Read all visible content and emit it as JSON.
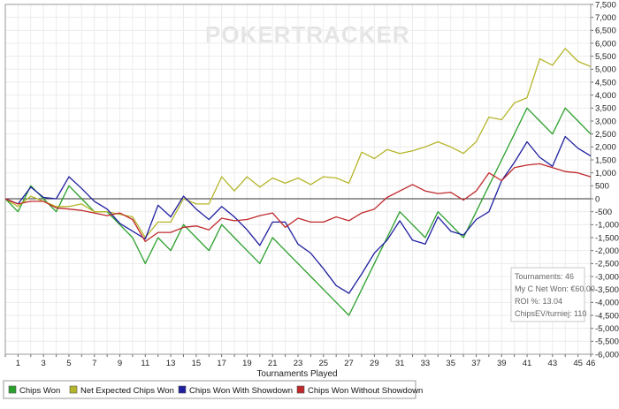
{
  "watermark": "POKERTRACKER",
  "chart_data": {
    "type": "line",
    "xlabel": "Tournaments Played",
    "ylabel": "",
    "ylim": [
      -6000,
      7500
    ],
    "xlim": [
      0,
      46
    ],
    "y_ticks": [
      7500,
      7000,
      6500,
      6000,
      5500,
      5000,
      4500,
      4000,
      3500,
      3000,
      2500,
      2000,
      1500,
      1000,
      500,
      0,
      -500,
      -1000,
      -1500,
      -2000,
      -2500,
      -3000,
      -3500,
      -4000,
      -4500,
      -5000,
      -5500,
      -6000
    ],
    "y_tick_labels": [
      "7,500",
      "7,000",
      "6,500",
      "6,000",
      "5,500",
      "5,000",
      "4,500",
      "4,000",
      "3,500",
      "3,000",
      "2,500",
      "2,000",
      "1,500",
      "1,000",
      "500",
      "0",
      "-500",
      "-1,000",
      "-1,500",
      "-2,000",
      "-2,500",
      "-3,000",
      "-3,500",
      "-4,000",
      "-4,500",
      "-5,000",
      "-5,500",
      "-6,000"
    ],
    "x_ticks": [
      1,
      3,
      5,
      7,
      9,
      11,
      13,
      15,
      17,
      19,
      21,
      23,
      25,
      27,
      29,
      31,
      33,
      35,
      37,
      39,
      41,
      43,
      45,
      46
    ],
    "x_tick_labels": [
      "1",
      "3",
      "5",
      "7",
      "9",
      "11",
      "13",
      "15",
      "17",
      "19",
      "21",
      "23",
      "25",
      "27",
      "29",
      "31",
      "33",
      "35",
      "37",
      "39",
      "41",
      "43",
      "45",
      "46"
    ],
    "grid": true,
    "legend_position": "bottom-left",
    "x": [
      0,
      1,
      2,
      3,
      4,
      5,
      6,
      7,
      8,
      9,
      10,
      11,
      12,
      13,
      14,
      15,
      16,
      17,
      18,
      19,
      20,
      21,
      22,
      23,
      24,
      25,
      26,
      27,
      28,
      29,
      30,
      31,
      32,
      33,
      34,
      35,
      36,
      37,
      38,
      39,
      40,
      41,
      42,
      43,
      44,
      45,
      46
    ],
    "series": [
      {
        "name": "Chips Won",
        "color": "#2ca02c",
        "values": [
          0,
          -500,
          500,
          0,
          -500,
          500,
          0,
          -500,
          -500,
          -1000,
          -1500,
          -2500,
          -1500,
          -2000,
          -1000,
          -1500,
          -2000,
          -1000,
          -1500,
          -2000,
          -2500,
          -1500,
          -2000,
          -2500,
          -3000,
          -3500,
          -4000,
          -4500,
          -3500,
          -2500,
          -1500,
          -500,
          -1000,
          -1500,
          -500,
          -1000,
          -1500,
          -500,
          500,
          1500,
          2500,
          3500,
          3000,
          2500,
          3500,
          3000,
          2500
        ]
      },
      {
        "name": "Net Expected Chips Won",
        "color": "#b5b52a",
        "values": [
          0,
          -300,
          100,
          -100,
          -300,
          -300,
          -200,
          -500,
          -500,
          -600,
          -700,
          -1500,
          -900,
          -900,
          0,
          -200,
          -200,
          850,
          300,
          850,
          450,
          800,
          600,
          800,
          550,
          850,
          800,
          600,
          1800,
          1550,
          1900,
          1750,
          1850,
          2000,
          2200,
          2000,
          1750,
          2200,
          3150,
          3050,
          3700,
          3900,
          5400,
          5150,
          5800,
          5300,
          5100
        ]
      },
      {
        "name": "Chips Won With Showdown",
        "color": "#1f1fa0",
        "values": [
          0,
          -200,
          450,
          50,
          0,
          850,
          400,
          -100,
          -400,
          -950,
          -1250,
          -1550,
          -250,
          -700,
          100,
          -400,
          -800,
          -300,
          -700,
          -1200,
          -1800,
          -900,
          -900,
          -1750,
          -2100,
          -2700,
          -3350,
          -3650,
          -2900,
          -2100,
          -1600,
          -850,
          -1600,
          -1750,
          -700,
          -1250,
          -1400,
          -800,
          -500,
          700,
          1400,
          2200,
          1600,
          1250,
          2400,
          1950,
          1650
        ]
      },
      {
        "name": "Chips Won Without Showdown",
        "color": "#c0282b",
        "values": [
          0,
          -200,
          -100,
          -100,
          -350,
          -400,
          -450,
          -550,
          -650,
          -550,
          -800,
          -1650,
          -1300,
          -1300,
          -1100,
          -1050,
          -1200,
          -750,
          -850,
          -800,
          -650,
          -550,
          -1100,
          -750,
          -900,
          -900,
          -700,
          -850,
          -550,
          -400,
          50,
          300,
          550,
          300,
          200,
          250,
          -50,
          300,
          1000,
          700,
          1200,
          1300,
          1350,
          1200,
          1050,
          1000,
          850
        ]
      }
    ]
  },
  "info_box": {
    "tournaments": "Tournaments: 46",
    "net_won": "My C Net Won: €60.00",
    "roi": "ROI %: 13.04",
    "chipsev": "ChipsEV/turniej: 110"
  },
  "legend": [
    {
      "label": "Chips Won",
      "color": "#2ca02c"
    },
    {
      "label": "Net Expected Chips Won",
      "color": "#b5b52a"
    },
    {
      "label": "Chips Won With Showdown",
      "color": "#1f1fa0"
    },
    {
      "label": "Chips Won Without Showdown",
      "color": "#c0282b"
    }
  ]
}
